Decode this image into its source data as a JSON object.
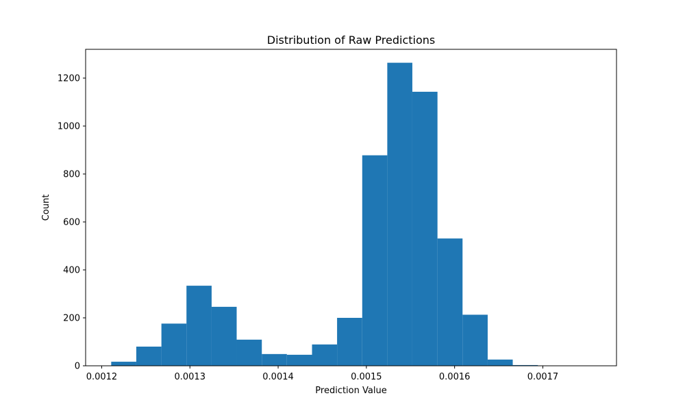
{
  "chart_data": {
    "type": "bar",
    "title": "Distribution of Raw Predictions",
    "xlabel": "Prediction Value",
    "ylabel": "Count",
    "bin_edges": [
      0.0012108,
      0.0012392,
      0.0012677,
      0.0012961,
      0.0013246,
      0.001353,
      0.0013815,
      0.0014099,
      0.0014384,
      0.0014668,
      0.0014953,
      0.0015237,
      0.0015521,
      0.0015806,
      0.001609,
      0.0016375,
      0.0016659,
      0.0016944,
      0.0017228,
      0.0017513,
      0.0017797
    ],
    "values": [
      17,
      80,
      176,
      334,
      246,
      109,
      49,
      46,
      89,
      200,
      878,
      1264,
      1143,
      531,
      213,
      26,
      3,
      0,
      0,
      1
    ],
    "xlim": [
      0.0011818,
      0.0017835
    ],
    "ylim": [
      0,
      1320
    ],
    "xticks": [
      0.0012,
      0.0013,
      0.0014,
      0.0015,
      0.0016,
      0.0017
    ],
    "xtick_labels": [
      "0.0012",
      "0.0013",
      "0.0014",
      "0.0015",
      "0.0016",
      "0.0017"
    ],
    "yticks": [
      0,
      200,
      400,
      600,
      800,
      1000,
      1200
    ],
    "ytick_labels": [
      "0",
      "200",
      "400",
      "600",
      "800",
      "1000",
      "1200"
    ],
    "grid": false,
    "legend": false,
    "bar_color": "#1f77b4"
  }
}
